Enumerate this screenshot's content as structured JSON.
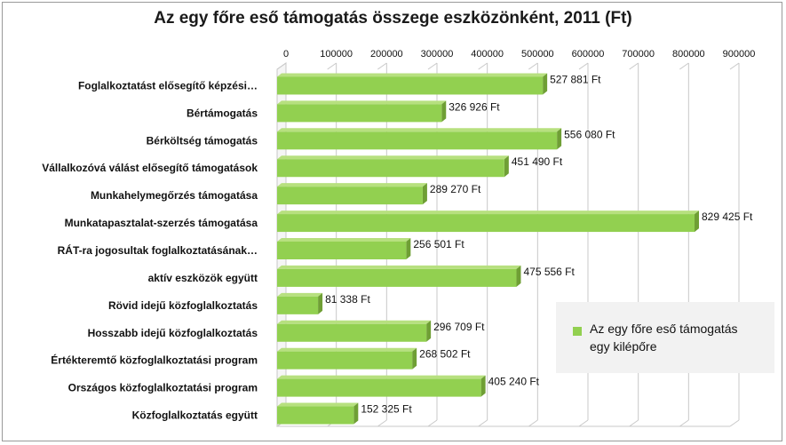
{
  "chart_data": {
    "type": "bar",
    "orientation": "horizontal",
    "title": "Az egy főre eső támogatás összege eszközönként, 2011 (Ft)",
    "xlim": [
      0,
      900000
    ],
    "tick_values": [
      0,
      100000,
      200000,
      300000,
      400000,
      500000,
      600000,
      700000,
      800000,
      900000
    ],
    "tick_labels": [
      "0",
      "100000",
      "200000",
      "300000",
      "400000",
      "500000",
      "600000",
      "700000",
      "800000",
      "900000"
    ],
    "axis_position": "top",
    "grid": true,
    "legend_position": "right",
    "bar_color": "#92d050",
    "categories": [
      "Foglalkoztatást elősegítő képzési…",
      "Bértámogatás",
      "Bérköltség támogatás",
      "Vállalkozóvá válást elősegítő támogatások",
      "Munkahelymegőrzés támogatása",
      "Munkatapasztalat-szerzés támogatása",
      "RÁT-ra jogosultak foglalkoztatásának…",
      "aktív eszközök együtt",
      "Rövid idejű közfoglalkoztatás",
      "Hosszabb idejű közfoglalkoztatás",
      "Értékteremtő közfoglalkoztatási program",
      "Országos közfoglalkoztatási program",
      "Közfoglalkoztatás együtt"
    ],
    "series": [
      {
        "name": "Az egy főre eső támogatás egy kilépőre",
        "values": [
          527881,
          326926,
          556080,
          451490,
          289270,
          829425,
          256501,
          475556,
          81338,
          296709,
          268502,
          405240,
          152325
        ],
        "labels": [
          "527 881 Ft",
          "326 926 Ft",
          "556 080 Ft",
          "451 490 Ft",
          "289 270 Ft",
          "829 425 Ft",
          "256 501 Ft",
          "475 556 Ft",
          "81 338 Ft",
          "296 709 Ft",
          "268 502 Ft",
          "405 240 Ft",
          "152 325 Ft"
        ]
      }
    ]
  },
  "legend": {
    "label_line1": "Az egy főre eső támogatás",
    "label_line2": "egy kilépőre"
  }
}
